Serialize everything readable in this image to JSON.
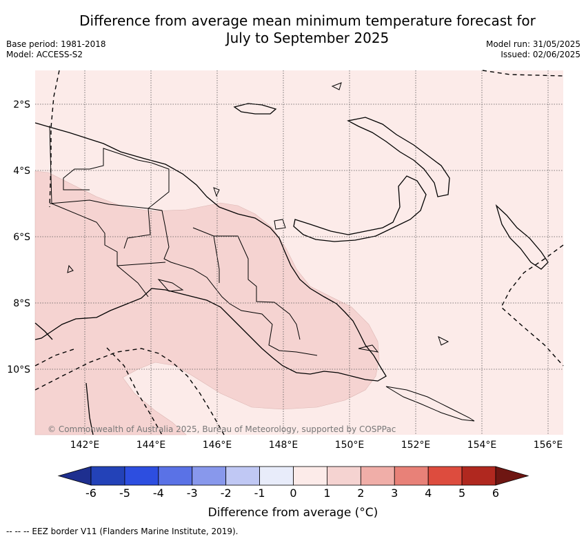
{
  "title_line1": "Difference from average mean minimum temperature forecast for",
  "title_line2": "July to September 2025",
  "meta_left": [
    "Base period: 1981-2018",
    "Model: ACCESS-S2"
  ],
  "meta_right": [
    "Model run: 31/05/2025",
    "Issued: 02/06/2025"
  ],
  "copyright": "© Commonwealth of Australia 2025, Bureau of Meteorology, supported by COSPPac",
  "lat_labels": [
    "2°S",
    "4°S",
    "6°S",
    "8°S",
    "10°S"
  ],
  "lon_labels": [
    "142°E",
    "144°E",
    "146°E",
    "148°E",
    "150°E",
    "152°E",
    "154°E",
    "156°E"
  ],
  "colorbar": {
    "label": "Difference from average (°C)",
    "ticks": [
      "-6",
      "-5",
      "-4",
      "-3",
      "-2",
      "-1",
      "0",
      "1",
      "2",
      "3",
      "4",
      "5",
      "6"
    ],
    "colors": [
      "#1e2f8f",
      "#2342b8",
      "#2d4ee0",
      "#5a72e6",
      "#8898ec",
      "#c0c8f4",
      "#e8ecfa",
      "#fcebe9",
      "#f5d3d1",
      "#f0aea8",
      "#e88178",
      "#dd4c3e",
      "#b0281f",
      "#6e1612"
    ]
  },
  "regions": {
    "ocean_fill": "#fcebe9",
    "anomaly_1_2_fill": "#f5d3d1"
  },
  "footnote": "-- -- -- EEZ border V11 (Flanders Marine Institute, 2019)."
}
